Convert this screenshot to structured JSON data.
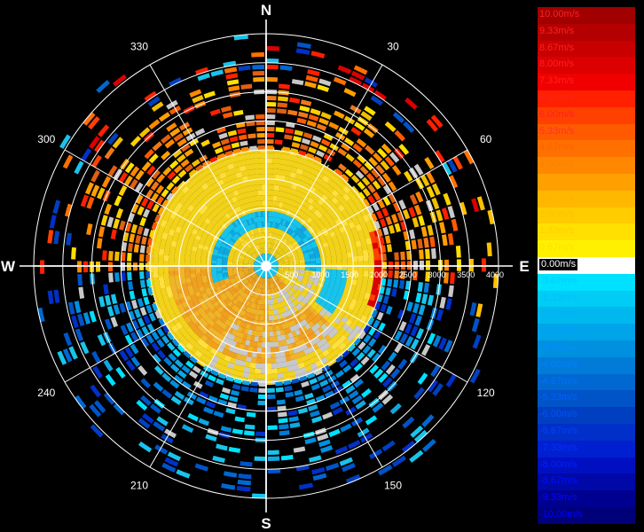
{
  "chart_data": {
    "type": "heatmap",
    "title": "",
    "cardinals": [
      "N",
      "E",
      "S",
      "W"
    ],
    "bearing_labels": [
      "30",
      "60",
      "120",
      "150",
      "210",
      "240",
      "300",
      "330"
    ],
    "range_labels": [
      "500",
      "1000",
      "1500",
      "2000",
      "2500",
      "3000",
      "3500",
      "4000"
    ],
    "rmax": 4000,
    "color_scale": {
      "labels": [
        "10.00m/s",
        "9.33m/s",
        "8.67m/s",
        "8.00m/s",
        "7.33m/s",
        "6.67m/s",
        "6.00m/s",
        "5.33m/s",
        "4.67m/s",
        "4.00m/s",
        "3.33m/s",
        "2.67m/s",
        "2.00m/s",
        "1.33m/s",
        "0.67m/s",
        "0.00m/s",
        "-0.67m/s",
        "-1.33m/s",
        "-2.00m/s",
        "-2.67m/s",
        "-3.33m/s",
        "-4.00m/s",
        "-4.67m/s",
        "-5.33m/s",
        "-6.00m/s",
        "-6.67m/s",
        "-7.33m/s",
        "-8.00m/s",
        "-8.67m/s",
        "-9.33m/s",
        "-10.00m/s"
      ],
      "colors": [
        "#a00000",
        "#b40000",
        "#c80000",
        "#dc0000",
        "#f00000",
        "#ff2000",
        "#ff4000",
        "#ff5a00",
        "#ff7000",
        "#ff8800",
        "#ffa000",
        "#ffb800",
        "#ffcc00",
        "#ffe000",
        "#fff000",
        "#ffffff",
        "#00e0ff",
        "#00ccf5",
        "#00b8ee",
        "#00a4e8",
        "#0090e0",
        "#007cd8",
        "#0068d0",
        "#0054c8",
        "#0040c0",
        "#0030c8",
        "#0020d0",
        "#0010c0",
        "#0008a8",
        "#000090",
        "#000078"
      ],
      "label_colors": [
        "#ff2020",
        "#ff2020",
        "#ff2020",
        "#ff2020",
        "#ff2020",
        "#ff2020",
        "#ff2020",
        "#ff3030",
        "#ff6000",
        "#ff8000",
        "#ffa000",
        "#ffb000",
        "#ffc000",
        "#ffd000",
        "#ffe000",
        "#ffffff",
        "#00d0ff",
        "#00c0ff",
        "#00b0ff",
        "#00a0ff",
        "#0090ff",
        "#0080ff",
        "#0070ff",
        "#0060ff",
        "#0050ff",
        "#0040ff",
        "#0030ff",
        "#0020ff",
        "#0010ff",
        "#0008ff",
        "#0000ff"
      ]
    },
    "inner_region": {
      "description_values_ms": {
        "core_yellow": 1.33,
        "center_south_orange": 3.33,
        "cyan_band": -1.33,
        "east_red_edge": 8.0
      }
    }
  }
}
